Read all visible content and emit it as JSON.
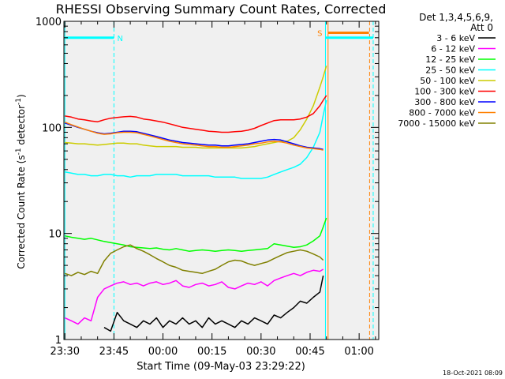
{
  "chart_data": {
    "type": "line",
    "title": "RHESSI Observing Summary Count Rates, Corrected",
    "xlabel": "Start Time (09-May-03 23:29:22)",
    "ylabel_main": "Corrected Count Rate (s",
    "ylabel_sup1": "-1",
    "ylabel_mid": " detector",
    "ylabel_sup2": "-1",
    "ylabel_end": ")",
    "yscale": "log",
    "ylim": [
      1,
      1000
    ],
    "xlim_minutes": [
      -0.3,
      96
    ],
    "x_ticks": [
      {
        "label": "23:30",
        "min": 0
      },
      {
        "label": "23:45",
        "min": 15
      },
      {
        "label": "00:00",
        "min": 30
      },
      {
        "label": "00:15",
        "min": 45
      },
      {
        "label": "00:30",
        "min": 60
      },
      {
        "label": "00:45",
        "min": 75
      },
      {
        "label": "01:00",
        "min": 90
      }
    ],
    "y_ticks": [
      {
        "label": "1",
        "value": 1
      },
      {
        "label": "10",
        "value": 10
      },
      {
        "label": "100",
        "value": 100
      },
      {
        "label": "1000",
        "value": 1000
      }
    ],
    "legend_header": [
      "Det 1,3,4,5,6,9,",
      "Att 0"
    ],
    "series": [
      {
        "name": "3 - 6 keV",
        "color": "#000000",
        "x": [
          12,
          14,
          16,
          18,
          20,
          22,
          24,
          26,
          28,
          30,
          32,
          34,
          36,
          38,
          40,
          42,
          44,
          46,
          48,
          50,
          52,
          54,
          56,
          58,
          60,
          62,
          64,
          66,
          68,
          70,
          72,
          74,
          76,
          78,
          79
        ],
        "values": [
          1.3,
          1.2,
          1.8,
          1.5,
          1.4,
          1.3,
          1.5,
          1.4,
          1.6,
          1.3,
          1.5,
          1.4,
          1.6,
          1.4,
          1.5,
          1.3,
          1.6,
          1.4,
          1.5,
          1.4,
          1.3,
          1.5,
          1.4,
          1.6,
          1.5,
          1.4,
          1.7,
          1.6,
          1.8,
          2.0,
          2.3,
          2.2,
          2.5,
          2.8,
          4.0
        ]
      },
      {
        "name": "6 - 12 keV",
        "color": "#ff00ff",
        "x": [
          0,
          2,
          4,
          6,
          8,
          10,
          12,
          14,
          16,
          18,
          20,
          22,
          24,
          26,
          28,
          30,
          32,
          34,
          36,
          38,
          40,
          42,
          44,
          46,
          48,
          50,
          52,
          54,
          56,
          58,
          60,
          62,
          64,
          66,
          68,
          70,
          72,
          74,
          76,
          78,
          79
        ],
        "values": [
          1.6,
          1.5,
          1.4,
          1.6,
          1.5,
          2.5,
          3.0,
          3.2,
          3.4,
          3.5,
          3.3,
          3.4,
          3.2,
          3.4,
          3.5,
          3.3,
          3.4,
          3.6,
          3.2,
          3.1,
          3.3,
          3.4,
          3.2,
          3.3,
          3.5,
          3.1,
          3.0,
          3.2,
          3.4,
          3.3,
          3.5,
          3.2,
          3.6,
          3.8,
          4.0,
          4.2,
          4.0,
          4.3,
          4.5,
          4.4,
          4.6
        ]
      },
      {
        "name": "12 - 25 keV",
        "color": "#00ff00",
        "x": [
          0,
          2,
          4,
          6,
          8,
          10,
          12,
          14,
          16,
          18,
          20,
          22,
          24,
          26,
          28,
          30,
          32,
          34,
          36,
          38,
          40,
          42,
          44,
          46,
          48,
          50,
          52,
          54,
          56,
          58,
          60,
          62,
          64,
          66,
          68,
          70,
          72,
          74,
          76,
          78,
          79,
          80
        ],
        "values": [
          9.5,
          9.2,
          9.0,
          8.8,
          9.0,
          8.7,
          8.4,
          8.2,
          8.0,
          7.8,
          7.5,
          7.4,
          7.3,
          7.2,
          7.3,
          7.1,
          7.0,
          7.2,
          7.0,
          6.8,
          6.9,
          7.0,
          6.9,
          6.8,
          6.9,
          7.0,
          6.9,
          6.8,
          6.9,
          7.0,
          7.1,
          7.2,
          8.0,
          7.8,
          7.6,
          7.4,
          7.5,
          7.8,
          8.5,
          9.5,
          11.5,
          14.0
        ]
      },
      {
        "name": "25 - 50 keV",
        "color": "#00ffff",
        "x": [
          0,
          2,
          4,
          6,
          8,
          10,
          12,
          14,
          16,
          18,
          20,
          22,
          24,
          26,
          28,
          30,
          32,
          34,
          36,
          38,
          40,
          42,
          44,
          46,
          48,
          50,
          52,
          54,
          56,
          58,
          60,
          62,
          64,
          66,
          68,
          70,
          72,
          74,
          76,
          78,
          79,
          80
        ],
        "values": [
          38,
          37,
          36,
          36,
          35,
          35,
          36,
          36,
          35,
          35,
          34,
          35,
          35,
          35,
          36,
          36,
          36,
          36,
          35,
          35,
          35,
          35,
          35,
          34,
          34,
          34,
          34,
          33,
          33,
          33,
          33,
          34,
          36,
          38,
          40,
          42,
          45,
          52,
          65,
          90,
          130,
          180
        ]
      },
      {
        "name": "50 - 100 keV",
        "color": "#cccc00",
        "x": [
          0,
          2,
          4,
          6,
          8,
          10,
          12,
          14,
          16,
          18,
          20,
          22,
          24,
          26,
          28,
          30,
          32,
          34,
          36,
          38,
          40,
          42,
          44,
          46,
          48,
          50,
          52,
          54,
          56,
          58,
          60,
          62,
          64,
          66,
          68,
          70,
          72,
          74,
          76,
          78,
          79,
          80
        ],
        "values": [
          72,
          71,
          70,
          70,
          69,
          68,
          69,
          70,
          71,
          71,
          70,
          70,
          68,
          67,
          66,
          66,
          66,
          66,
          65,
          65,
          65,
          64,
          64,
          64,
          64,
          64,
          64,
          64,
          65,
          66,
          68,
          70,
          72,
          74,
          74,
          80,
          95,
          120,
          160,
          240,
          300,
          380
        ]
      },
      {
        "name": "100 - 300 keV",
        "color": "#ff0000",
        "x": [
          0,
          2,
          4,
          6,
          8,
          10,
          12,
          14,
          16,
          18,
          20,
          22,
          24,
          26,
          28,
          30,
          32,
          34,
          36,
          38,
          40,
          42,
          44,
          46,
          48,
          50,
          52,
          54,
          56,
          58,
          60,
          62,
          64,
          66,
          68,
          70,
          72,
          74,
          76,
          78,
          79,
          80
        ],
        "values": [
          128,
          125,
          120,
          118,
          115,
          113,
          118,
          122,
          124,
          126,
          127,
          125,
          120,
          118,
          115,
          112,
          108,
          104,
          100,
          98,
          96,
          94,
          92,
          91,
          90,
          90,
          91,
          92,
          94,
          98,
          104,
          110,
          116,
          118,
          118,
          118,
          120,
          125,
          135,
          160,
          180,
          200
        ]
      },
      {
        "name": "300 - 800 keV",
        "color": "#0000ff",
        "x": [
          0,
          2,
          4,
          6,
          8,
          10,
          12,
          14,
          16,
          18,
          20,
          22,
          24,
          26,
          28,
          30,
          32,
          34,
          36,
          38,
          40,
          42,
          44,
          46,
          48,
          50,
          52,
          54,
          56,
          58,
          60,
          62,
          64,
          66,
          68,
          70,
          72,
          74,
          76,
          78,
          79
        ],
        "values": [
          110,
          105,
          100,
          96,
          92,
          89,
          87,
          88,
          90,
          92,
          92,
          91,
          88,
          85,
          82,
          79,
          76,
          74,
          72,
          71,
          70,
          69,
          68,
          68,
          67,
          67,
          68,
          69,
          70,
          72,
          74,
          76,
          77,
          76,
          73,
          70,
          67,
          65,
          64,
          63,
          62
        ]
      },
      {
        "name": "800 - 7000 keV",
        "color": "#ff8000",
        "x": [
          0,
          2,
          4,
          6,
          8,
          10,
          12,
          14,
          16,
          18,
          20,
          22,
          24,
          26,
          28,
          30,
          32,
          34,
          36,
          38,
          40,
          42,
          44,
          46,
          48,
          50,
          52,
          54,
          56,
          58,
          60,
          62,
          64,
          66,
          68,
          70,
          72,
          74,
          76,
          78,
          79
        ],
        "values": [
          112,
          106,
          101,
          96,
          92,
          88,
          86,
          87,
          89,
          90,
          90,
          89,
          86,
          83,
          80,
          77,
          74,
          72,
          70,
          69,
          68,
          67,
          66,
          66,
          65,
          65,
          66,
          67,
          68,
          70,
          71,
          73,
          74,
          73,
          71,
          68,
          66,
          64,
          63,
          62,
          61
        ]
      },
      {
        "name": "7000 - 15000 keV",
        "color": "#808000",
        "x": [
          0,
          2,
          4,
          6,
          8,
          10,
          12,
          14,
          16,
          18,
          20,
          22,
          24,
          26,
          28,
          30,
          32,
          34,
          36,
          38,
          40,
          42,
          44,
          46,
          48,
          50,
          52,
          54,
          56,
          58,
          60,
          62,
          64,
          66,
          68,
          70,
          72,
          74,
          76,
          78,
          79
        ],
        "values": [
          4.2,
          4.0,
          4.3,
          4.1,
          4.4,
          4.2,
          5.5,
          6.5,
          7.0,
          7.5,
          7.8,
          7.2,
          6.8,
          6.3,
          5.8,
          5.4,
          5.0,
          4.8,
          4.5,
          4.4,
          4.3,
          4.2,
          4.4,
          4.6,
          5.0,
          5.4,
          5.6,
          5.5,
          5.2,
          5.0,
          5.2,
          5.4,
          5.8,
          6.2,
          6.6,
          6.8,
          7.0,
          6.8,
          6.4,
          6.0,
          5.6
        ]
      }
    ],
    "markers": [
      {
        "label": "N",
        "color": "#00ffff",
        "start_min": 0,
        "end_min": 15,
        "y": 700,
        "text_at_min": 16
      },
      {
        "label": "S",
        "color": "#ff8000",
        "start_min": 80.5,
        "end_min": 93,
        "y": 780,
        "text_at_min": 77.2
      }
    ],
    "vertical_lines": [
      {
        "min": 0,
        "color": "#00ffff",
        "style": "solid"
      },
      {
        "min": 15,
        "color": "#00ffff",
        "style": "dashed"
      },
      {
        "min": 79.7,
        "color": "#00ffff",
        "style": "solid"
      },
      {
        "min": 80.5,
        "color": "#ff8000",
        "style": "solid"
      },
      {
        "min": 93.2,
        "color": "#ff8000",
        "style": "dashed"
      },
      {
        "min": 94.3,
        "color": "#00ffff",
        "style": "dashed"
      }
    ],
    "extra_hline": {
      "color": "#00ffff",
      "start_min": 79.7,
      "end_min": 94.3,
      "y": 700
    },
    "footer_date": "18-Oct-2021 08:09"
  }
}
